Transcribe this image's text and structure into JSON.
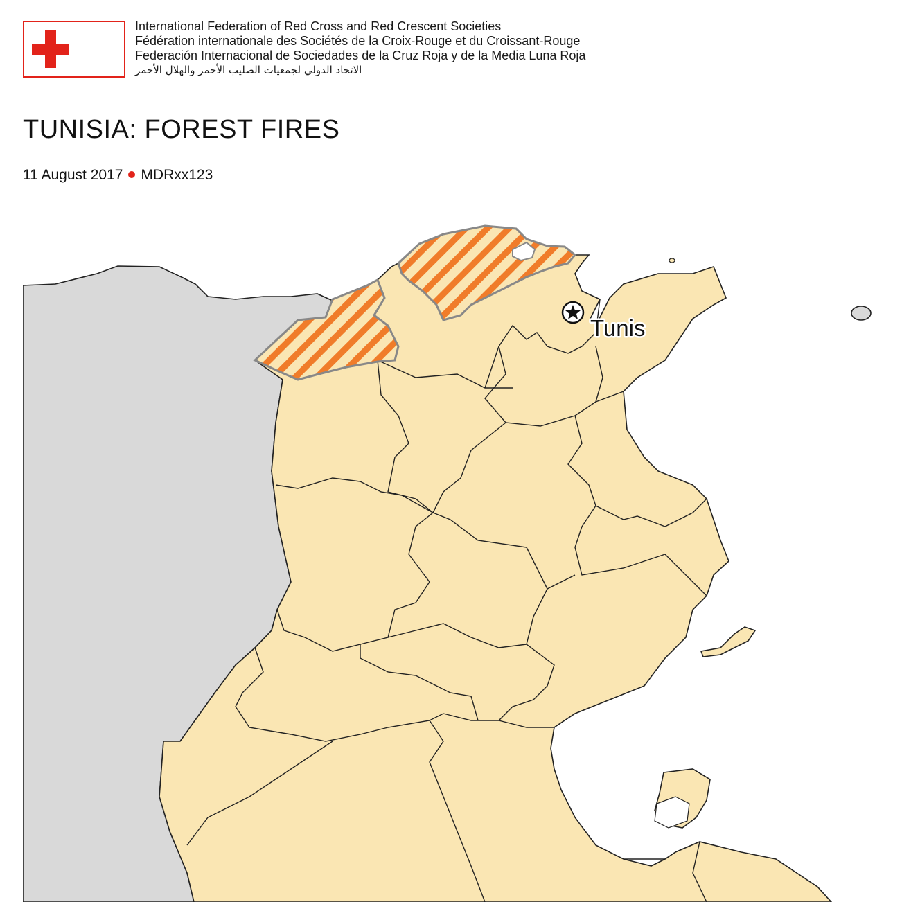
{
  "organization": {
    "name_en": "International Federation of Red Cross and Red Crescent Societies",
    "name_fr": "Fédération internationale des Sociétés de la Croix-Rouge et du Croissant-Rouge",
    "name_es": "Federación Internacional de Sociedades de la Cruz Roja y de la Media Luna Roja",
    "name_ar": "الاتحاد الدولي لجمعيات الصليب الأحمر والهلال الأحمر",
    "logo_icons": [
      "red-cross-icon",
      "red-crescent-icon"
    ]
  },
  "map": {
    "title": "TUNISIA: FOREST FIRES",
    "date": "11 August 2017",
    "appeal_code": "MDRxx123",
    "cities": [
      {
        "name": "Tunis",
        "capital": true
      }
    ],
    "colors": {
      "brand_red": "#e2231a",
      "country_fill": "#fae6b3",
      "neighbor_fill": "#d9d9d9",
      "affected_hatch": "#f07c2a",
      "affected_border": "#888888",
      "border_line": "#222222"
    }
  }
}
